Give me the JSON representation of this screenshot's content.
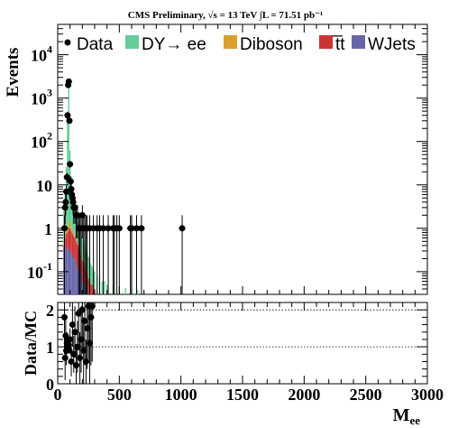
{
  "chart_data": [
    {
      "panel": "main",
      "type": "histogram",
      "title": "CMS Preliminary, √s = 13 TeV ∫L = 71.51 pb⁻¹",
      "ylabel": "Events",
      "xlim": [
        0,
        3000
      ],
      "ylim": [
        0.03,
        50000
      ],
      "yscale": "log",
      "xticks": [
        0,
        500,
        1000,
        1500,
        2000,
        2500,
        3000
      ],
      "yticks": [
        {
          "value": 0.1,
          "base": "10",
          "exp": "-1"
        },
        {
          "value": 1,
          "base": "1",
          "exp": ""
        },
        {
          "value": 10,
          "base": "10",
          "exp": ""
        },
        {
          "value": 100,
          "base": "10",
          "exp": "2"
        },
        {
          "value": 1000,
          "base": "10",
          "exp": "3"
        },
        {
          "value": 10000,
          "base": "10",
          "exp": "4"
        }
      ],
      "legend_position": "top",
      "legend": [
        {
          "name": "Data",
          "marker": "point",
          "color": "#000000"
        },
        {
          "name": "DY→ ee",
          "marker": "box",
          "color": "#66cc99"
        },
        {
          "name": "Diboson",
          "marker": "box",
          "color": "#d9a030"
        },
        {
          "name": "t̅t",
          "marker": "box",
          "color": "#cc3333"
        },
        {
          "name": "WJets",
          "marker": "box",
          "color": "#6666aa"
        }
      ],
      "bin_width": 10,
      "stack": {
        "x": [
          50,
          60,
          70,
          80,
          90,
          100,
          110,
          120,
          130,
          140,
          150,
          160,
          170,
          180,
          190,
          200,
          210,
          220,
          230,
          240,
          250,
          260,
          270,
          280,
          290,
          300,
          320,
          340,
          360,
          380,
          400,
          450,
          500,
          550,
          600,
          650,
          700
        ],
        "series": [
          {
            "name": "WJets",
            "color": "#6666aa",
            "values": [
              0.35,
              0.4,
              0.35,
              0.3,
              0.35,
              0.3,
              0.25,
              0.25,
              0.2,
              0.2,
              0.15,
              0.12,
              0.1,
              0.1,
              0.08,
              0.06,
              0.05,
              0.05,
              0.04,
              0.04,
              0.03,
              0.03,
              0.03,
              0.03,
              0.03,
              0.03,
              0.03,
              0.03,
              0.03,
              0.03,
              0.03,
              0.03,
              0.03,
              0.03,
              0.03,
              0.03,
              0.03
            ]
          },
          {
            "name": "t̅t",
            "color": "#cc3333",
            "values": [
              0.05,
              0.2,
              0.4,
              0.5,
              0.6,
              0.7,
              0.6,
              0.5,
              0.45,
              0.4,
              0.35,
              0.3,
              0.25,
              0.2,
              0.15,
              0.12,
              0.1,
              0.08,
              0.06,
              0.05,
              0.04,
              0.03,
              0.02,
              0.02,
              0.01,
              0.01,
              0,
              0,
              0,
              0,
              0,
              0,
              0,
              0,
              0,
              0,
              0
            ]
          },
          {
            "name": "Diboson",
            "color": "#d9a030",
            "values": [
              0.05,
              0.1,
              0.2,
              0.3,
              0.5,
              0.4,
              0.2,
              0.15,
              0.1,
              0.08,
              0.06,
              0.05,
              0.04,
              0.03,
              0.02,
              0.02,
              0.01,
              0.01,
              0.01,
              0.01,
              0,
              0,
              0,
              0,
              0,
              0,
              0,
              0,
              0,
              0,
              0,
              0,
              0,
              0,
              0,
              0,
              0
            ]
          },
          {
            "name": "DY→ ee",
            "color": "#66cc99",
            "values": [
              2,
              6,
              25,
              500,
              2100,
              60,
              15,
              8,
              5,
              3,
              2,
              1.4,
              1,
              0.8,
              0.6,
              0.45,
              0.35,
              0.28,
              0.22,
              0.18,
              0.15,
              0.12,
              0.1,
              0.08,
              0.07,
              0.06,
              0.05,
              0.04,
              0.03,
              0.03,
              0.02,
              0.02,
              0.015,
              0.012,
              0.01,
              0.008,
              0.006
            ]
          }
        ]
      },
      "data": {
        "name": "Data",
        "x": [
          55,
          60,
          65,
          70,
          75,
          80,
          85,
          90,
          95,
          100,
          105,
          110,
          115,
          120,
          125,
          130,
          140,
          150,
          160,
          170,
          180,
          190,
          200,
          210,
          220,
          230,
          240,
          260,
          290,
          320,
          340,
          370,
          410,
          450,
          460,
          480,
          500,
          590,
          600,
          640,
          680,
          1010
        ],
        "y": [
          1,
          3,
          4,
          7,
          15,
          400,
          2000,
          2400,
          300,
          30,
          12,
          8,
          6,
          5,
          4,
          3,
          3,
          2,
          2,
          1,
          1,
          1,
          2,
          1,
          1,
          1,
          1,
          1,
          1,
          1,
          1,
          1,
          1,
          1,
          1,
          1,
          1,
          1,
          1,
          1,
          1,
          1
        ]
      }
    },
    {
      "panel": "ratio",
      "type": "scatter",
      "ylabel": "Data/MC",
      "xlabel_base": "M",
      "xlabel_sub": "ee",
      "xlim": [
        0,
        3000
      ],
      "ylim": [
        0,
        2.2
      ],
      "xticks": [
        0,
        500,
        1000,
        1500,
        2000,
        2500,
        3000
      ],
      "yticks": [
        0,
        1,
        2
      ],
      "reference_lines": [
        1,
        2
      ],
      "data": {
        "x": [
          55,
          60,
          65,
          70,
          75,
          80,
          85,
          90,
          95,
          100,
          110,
          120,
          130,
          140,
          150,
          160,
          170,
          180,
          190,
          200,
          210,
          220,
          230,
          240,
          250,
          260,
          270,
          280
        ],
        "y": [
          1.8,
          0.7,
          1.3,
          0.9,
          1.1,
          1.0,
          0.95,
          1.05,
          0.9,
          1.2,
          0.6,
          1.6,
          0.8,
          1.4,
          0.5,
          1.0,
          1.9,
          0.7,
          1.2,
          2.0,
          0.9,
          1.7,
          0.6,
          1.5,
          2.1,
          1.1,
          1.8,
          2.1
        ],
        "err": [
          1.0,
          0.6,
          0.5,
          0.4,
          0.3,
          0.05,
          0.03,
          0.03,
          0.08,
          0.3,
          0.4,
          0.6,
          0.5,
          0.7,
          0.5,
          0.7,
          1.0,
          0.7,
          0.9,
          1.2,
          0.9,
          1.2,
          0.6,
          1.1,
          1.5,
          1.1,
          1.3,
          1.5
        ]
      }
    }
  ]
}
